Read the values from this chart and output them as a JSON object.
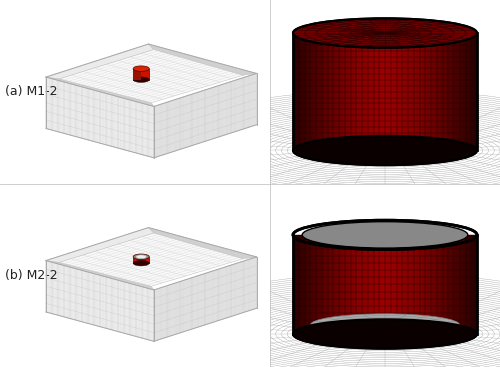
{
  "figure_width": 5.0,
  "figure_height": 3.67,
  "dpi": 100,
  "background_color": "#ffffff",
  "label_a": "(a) M1-2",
  "label_b": "(b) M2-2",
  "label_fontsize": 9,
  "label_color": "#222222",
  "tank_color_solid": "#8b0000",
  "tank_color_highlight": "#cc2200",
  "tank_color_dark": "#1a0000",
  "grid_color": "#555555",
  "mesh_bg": "#c8c8c8",
  "border_color": "#333333",
  "wall_color_light": "#ebebeb",
  "wall_color_mid": "#e0e0e0",
  "wall_color_dark": "#d0d0d0",
  "wall_line": "#c0c0c0",
  "inner_floor": "#f8f8f8"
}
